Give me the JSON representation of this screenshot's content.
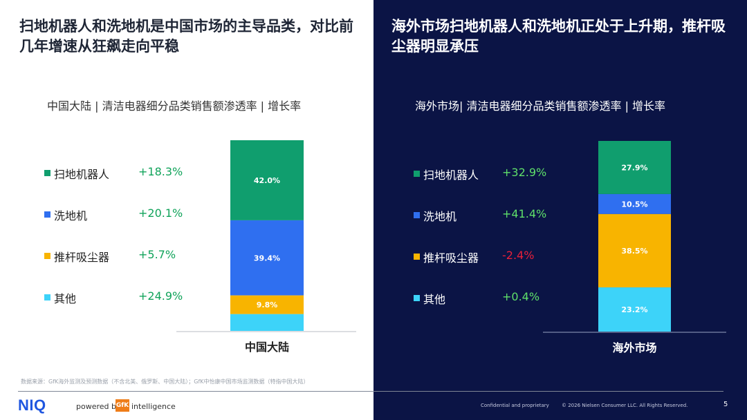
{
  "colors": {
    "robot": "#109e6e",
    "floor_washer": "#2f6ff0",
    "stick_vacuum": "#f8b400",
    "other": "#3dd3f9",
    "positive_growth": "#10a35a",
    "positive_growth_dark": "#5fe06a",
    "negative_growth": "#e8203a"
  },
  "left": {
    "headline": "扫地机器人和洗地机是中国市场的主导品类，对比前几年增速从狂飙走向平稳",
    "subtitle": "中国大陆 | 清洁电器细分品类销售额渗透率 | 增长率",
    "source": "数据来源：GfK海外监测及预测数据（不含北美、俄罗斯、中国大陆）；GfK中怡康中国市场监测数据（特指中国大陆）"
  },
  "right": {
    "headline": "海外市场扫地机器人和洗地机正处于上升期，推杆吸尘器明显承压",
    "subtitle": "海外市场| 清洁电器细分品类销售额渗透率 | 增长率"
  },
  "footer": {
    "logo": "NIQ",
    "powered_by": "powered by",
    "gfk": "GfK",
    "intelligence": "intelligence",
    "confidential": "Confidential and proprietary",
    "copyright": "© 2026 Nielsen Consumer LLC. All Rights Reserved.",
    "page_number": "5"
  },
  "chart_data": [
    {
      "type": "bar",
      "stacked": true,
      "categories": [
        "中国大陆"
      ],
      "series": [
        {
          "name": "扫地机器人",
          "values": [
            42.0
          ],
          "value_label": "42.0%",
          "growth": "+18.3%"
        },
        {
          "name": "洗地机",
          "values": [
            39.4
          ],
          "value_label": "39.4%",
          "growth": "+20.1%"
        },
        {
          "name": "推杆吸尘器",
          "values": [
            9.8
          ],
          "value_label": "9.8%",
          "growth": "+5.7%"
        },
        {
          "name": "其他",
          "values": [
            8.8
          ],
          "value_label": "",
          "growth": "+24.9%"
        }
      ],
      "ylim": [
        0,
        100
      ],
      "legend": "left"
    },
    {
      "type": "bar",
      "stacked": true,
      "categories": [
        "海外市场"
      ],
      "series": [
        {
          "name": "扫地机器人",
          "values": [
            27.9
          ],
          "value_label": "27.9%",
          "growth": "+32.9%"
        },
        {
          "name": "洗地机",
          "values": [
            10.5
          ],
          "value_label": "10.5%",
          "growth": "+41.4%"
        },
        {
          "name": "推杆吸尘器",
          "values": [
            38.5
          ],
          "value_label": "38.5%",
          "growth": "-2.4%"
        },
        {
          "name": "其他",
          "values": [
            23.2
          ],
          "value_label": "23.2%",
          "growth": "+0.4%"
        }
      ],
      "ylim": [
        0,
        100
      ],
      "legend": "left"
    }
  ]
}
